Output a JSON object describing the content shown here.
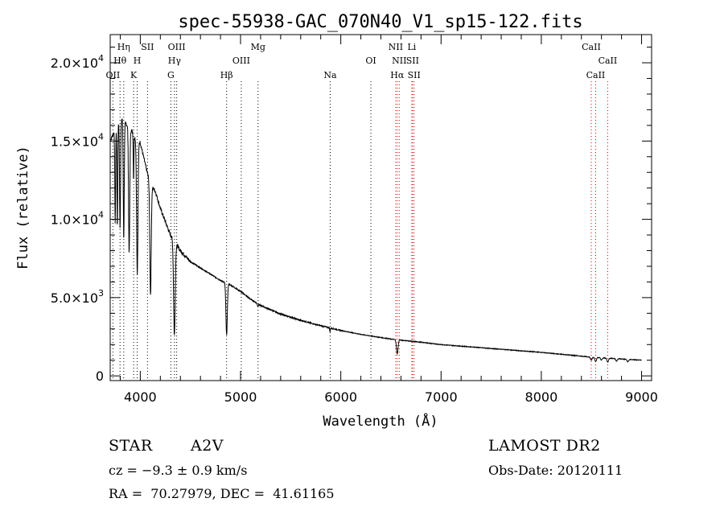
{
  "chart_data": {
    "type": "line",
    "title": "spec-55938-GAC_070N40_V1_sp15-122.fits",
    "xlabel": "Wavelength (Å)",
    "ylabel": "Flux (relative)",
    "xlim": [
      3700,
      9100
    ],
    "ylim": [
      -300,
      21800
    ],
    "grid": false,
    "x_ticks": [
      4000,
      5000,
      6000,
      7000,
      8000,
      9000
    ],
    "y_ticks": [
      0,
      5000,
      10000,
      15000,
      20000
    ],
    "x_tick_labels": [
      "4000",
      "5000",
      "6000",
      "7000",
      "8000",
      "9000"
    ],
    "y_tick_labels": [
      {
        "value": 0,
        "mant": "0",
        "exp": ""
      },
      {
        "value": 5000,
        "mant": "5.0×10",
        "exp": "3"
      },
      {
        "value": 10000,
        "mant": "1.0×10",
        "exp": "4"
      },
      {
        "value": 15000,
        "mant": "1.5×10",
        "exp": "4"
      },
      {
        "value": 20000,
        "mant": "2.0×10",
        "exp": "4"
      }
    ],
    "series": [
      {
        "color": "#000000",
        "continuum": [
          [
            3700,
            15000
          ],
          [
            3800,
            16500
          ],
          [
            3900,
            15800
          ],
          [
            3950,
            15200
          ],
          [
            4000,
            14900
          ],
          [
            4050,
            13500
          ],
          [
            4100,
            12200
          ],
          [
            4150,
            11800
          ],
          [
            4200,
            10700
          ],
          [
            4300,
            9000
          ],
          [
            4400,
            8000
          ],
          [
            4500,
            7300
          ],
          [
            4600,
            6900
          ],
          [
            4700,
            6500
          ],
          [
            4800,
            6100
          ],
          [
            4900,
            5800
          ],
          [
            5000,
            5400
          ],
          [
            5100,
            4900
          ],
          [
            5200,
            4500
          ],
          [
            5400,
            3950
          ],
          [
            5600,
            3550
          ],
          [
            5800,
            3200
          ],
          [
            6000,
            2900
          ],
          [
            6200,
            2650
          ],
          [
            6500,
            2350
          ],
          [
            6800,
            2150
          ],
          [
            7000,
            2000
          ],
          [
            7500,
            1750
          ],
          [
            8000,
            1500
          ],
          [
            8500,
            1200
          ],
          [
            9000,
            1000
          ]
        ],
        "absorption_lines": [
          {
            "center": 3750,
            "depth": 6000,
            "width": 4
          },
          {
            "center": 3771,
            "depth": 6500,
            "width": 4
          },
          {
            "center": 3798,
            "depth": 7000,
            "width": 5
          },
          {
            "center": 3835,
            "depth": 7500,
            "width": 5
          },
          {
            "center": 3889,
            "depth": 8000,
            "width": 6
          },
          {
            "center": 3933,
            "depth": 3000,
            "width": 3
          },
          {
            "center": 3970,
            "depth": 8500,
            "width": 7
          },
          {
            "center": 4102,
            "depth": 7000,
            "width": 7
          },
          {
            "center": 4340,
            "depth": 6000,
            "width": 8
          },
          {
            "center": 4861,
            "depth": 3300,
            "width": 7
          },
          {
            "center": 5172,
            "depth": 150,
            "width": 5
          },
          {
            "center": 5892,
            "depth": 250,
            "width": 3
          },
          {
            "center": 6563,
            "depth": 900,
            "width": 8
          },
          {
            "center": 8498,
            "depth": 200,
            "width": 8
          },
          {
            "center": 8542,
            "depth": 250,
            "width": 8
          },
          {
            "center": 8600,
            "depth": 150,
            "width": 8
          },
          {
            "center": 8662,
            "depth": 250,
            "width": 8
          },
          {
            "center": 8750,
            "depth": 150,
            "width": 8
          },
          {
            "center": 8863,
            "depth": 150,
            "width": 8
          }
        ]
      }
    ],
    "line_markers": [
      {
        "label": "OII",
        "wavelength": 3727,
        "row": 3,
        "color": "#000000"
      },
      {
        "label": "Hθ",
        "wavelength": 3798,
        "row": 2,
        "color": "#000000"
      },
      {
        "label": "Hη",
        "wavelength": 3835,
        "row": 1,
        "color": "#000000"
      },
      {
        "label": "K",
        "wavelength": 3934,
        "row": 3,
        "color": "#000000"
      },
      {
        "label": "H",
        "wavelength": 3969,
        "row": 2,
        "color": "#000000"
      },
      {
        "label": "SII",
        "wavelength": 4072,
        "row": 1,
        "color": "#000000"
      },
      {
        "label": "G",
        "wavelength": 4305,
        "row": 3,
        "color": "#000000"
      },
      {
        "label": "Hγ",
        "wavelength": 4341,
        "row": 2,
        "color": "#000000"
      },
      {
        "label": "OIII",
        "wavelength": 4363,
        "row": 1,
        "color": "#000000"
      },
      {
        "label": "Hβ",
        "wavelength": 4861,
        "row": 3,
        "color": "#000000"
      },
      {
        "label": "OIII",
        "wavelength": 5007,
        "row": 2,
        "color": "#000000"
      },
      {
        "label": "Mg",
        "wavelength": 5175,
        "row": 1,
        "color": "#000000"
      },
      {
        "label": "Na",
        "wavelength": 5894,
        "row": 3,
        "color": "#000000"
      },
      {
        "label": "OI",
        "wavelength": 6300,
        "row": 2,
        "color": "#000000"
      },
      {
        "label": "NII",
        "wavelength": 6548,
        "row": 1,
        "color": "#cc0000"
      },
      {
        "label": "Hα",
        "wavelength": 6563,
        "row": 3,
        "color": "#cc0000"
      },
      {
        "label": "NII",
        "wavelength": 6583,
        "row": 2,
        "color": "#cc0000"
      },
      {
        "label": "Li",
        "wavelength": 6708,
        "row": 1,
        "color": "#cc0000"
      },
      {
        "label": "SII",
        "wavelength": 6716,
        "row": 2,
        "color": "#cc0000"
      },
      {
        "label": "SII",
        "wavelength": 6731,
        "row": 3,
        "color": "#cc0000"
      },
      {
        "label": "CaII",
        "wavelength": 8498,
        "row": 1,
        "color": "#cc0000"
      },
      {
        "label": "CaII",
        "wavelength": 8542,
        "row": 3,
        "color": "#cc0000"
      },
      {
        "label": "CaII",
        "wavelength": 8662,
        "row": 2,
        "color": "#cc0000"
      }
    ]
  },
  "info": {
    "class_label": "STAR",
    "subclass": "A2V",
    "cz": "cz = −9.3 ± 0.9 km/s",
    "coords": "RA =  70.27979, DEC =  41.61165",
    "survey": "LAMOST DR2",
    "obs_date": "Obs-Date: 20120111"
  }
}
